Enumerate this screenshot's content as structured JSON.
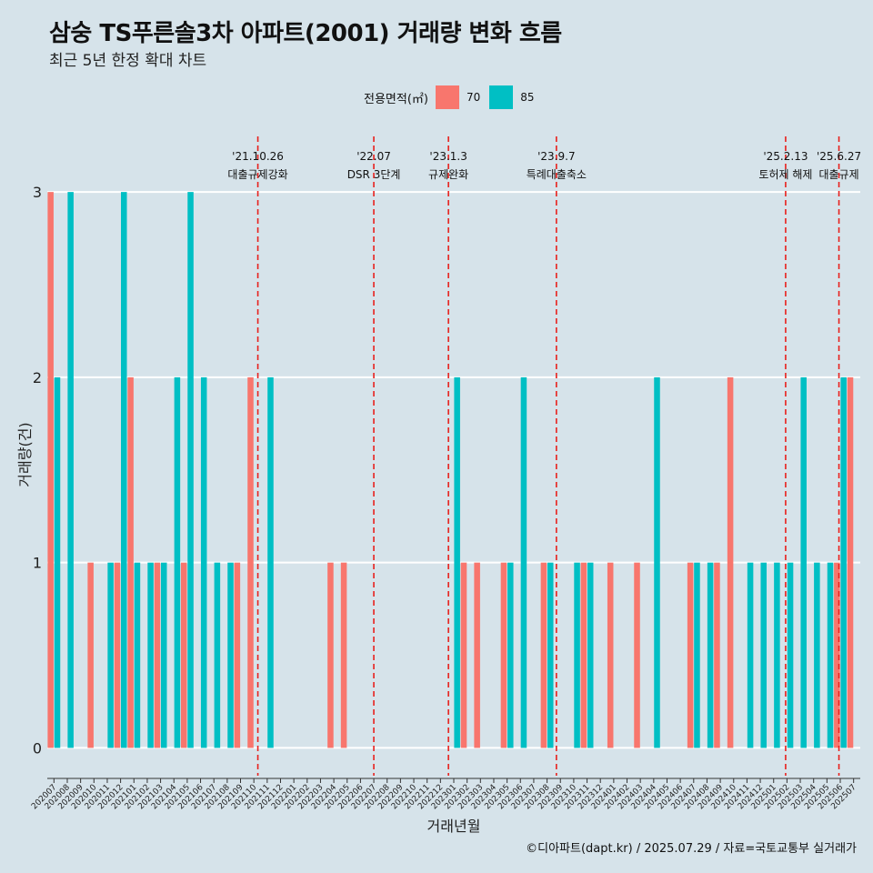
{
  "title": "삼숭 TS푸른솔3차 아파트(2001) 거래량 변화 흐름",
  "subtitle": "최근 5년 한정 확대 차트",
  "caption": "©디아파트(dapt.kr) / 2025.07.29 / 자료=국토교통부 실거래가",
  "colors": {
    "s70": "#f8766d",
    "s85": "#00bfc4",
    "event_line": "#e8201c",
    "grid": "#ffffff",
    "background": "#d6e3ea"
  },
  "chart_data": {
    "type": "bar",
    "title": "삼숭 TS푸른솔3차 아파트(2001) 거래량 변화 흐름",
    "xlabel": "거래년월",
    "ylabel": "거래량(건)",
    "ylim": [
      -0.15,
      3.3
    ],
    "yticks": [
      0,
      1,
      2,
      3
    ],
    "legend_title": "전용면적(㎡)",
    "legend_position": "top",
    "categories": [
      "202007",
      "202008",
      "202009",
      "202010",
      "202011",
      "202012",
      "202101",
      "202102",
      "202103",
      "202104",
      "202105",
      "202106",
      "202107",
      "202108",
      "202109",
      "202110",
      "202111",
      "202112",
      "202201",
      "202202",
      "202203",
      "202204",
      "202205",
      "202206",
      "202207",
      "202208",
      "202209",
      "202210",
      "202211",
      "202212",
      "202301",
      "202302",
      "202303",
      "202304",
      "202305",
      "202306",
      "202307",
      "202308",
      "202309",
      "202310",
      "202311",
      "202312",
      "202401",
      "202402",
      "202403",
      "202404",
      "202405",
      "202406",
      "202407",
      "202408",
      "202409",
      "202410",
      "202411",
      "202412",
      "202501",
      "202502",
      "202503",
      "202504",
      "202505",
      "202506",
      "202507"
    ],
    "series": [
      {
        "name": "70",
        "values": [
          3,
          0,
          0,
          1,
          0,
          1,
          2,
          0,
          1,
          0,
          1,
          0,
          0,
          0,
          1,
          2,
          0,
          0,
          0,
          0,
          0,
          1,
          1,
          0,
          0,
          0,
          0,
          0,
          0,
          0,
          0,
          1,
          1,
          0,
          1,
          0,
          0,
          1,
          0,
          0,
          1,
          0,
          1,
          0,
          1,
          0,
          0,
          0,
          1,
          0,
          1,
          2,
          0,
          0,
          0,
          0,
          0,
          0,
          0,
          1,
          2
        ]
      },
      {
        "name": "85",
        "values": [
          2,
          3,
          0,
          0,
          1,
          3,
          1,
          1,
          1,
          2,
          3,
          2,
          1,
          1,
          0,
          0,
          2,
          0,
          0,
          0,
          0,
          0,
          0,
          0,
          0,
          0,
          0,
          0,
          0,
          0,
          2,
          0,
          0,
          0,
          1,
          2,
          0,
          1,
          0,
          1,
          1,
          0,
          0,
          0,
          0,
          2,
          0,
          0,
          1,
          1,
          0,
          0,
          1,
          1,
          1,
          1,
          2,
          1,
          1,
          2,
          0
        ]
      }
    ],
    "events": [
      {
        "date": "'21.10.26",
        "label": "대출규제강화",
        "index": 15.8
      },
      {
        "date": "'22.07",
        "label": "DSR 3단계",
        "index": 24.5
      },
      {
        "date": "'23.1.3",
        "label": "규제완화",
        "index": 30.1
      },
      {
        "date": "'23.9.7",
        "label": "특례대출축소",
        "index": 38.2
      },
      {
        "date": "'25.2.13",
        "label": "토허제 해제",
        "index": 55.4
      },
      {
        "date": "'25.6.27",
        "label": "대출규제",
        "index": 59.4
      }
    ]
  }
}
